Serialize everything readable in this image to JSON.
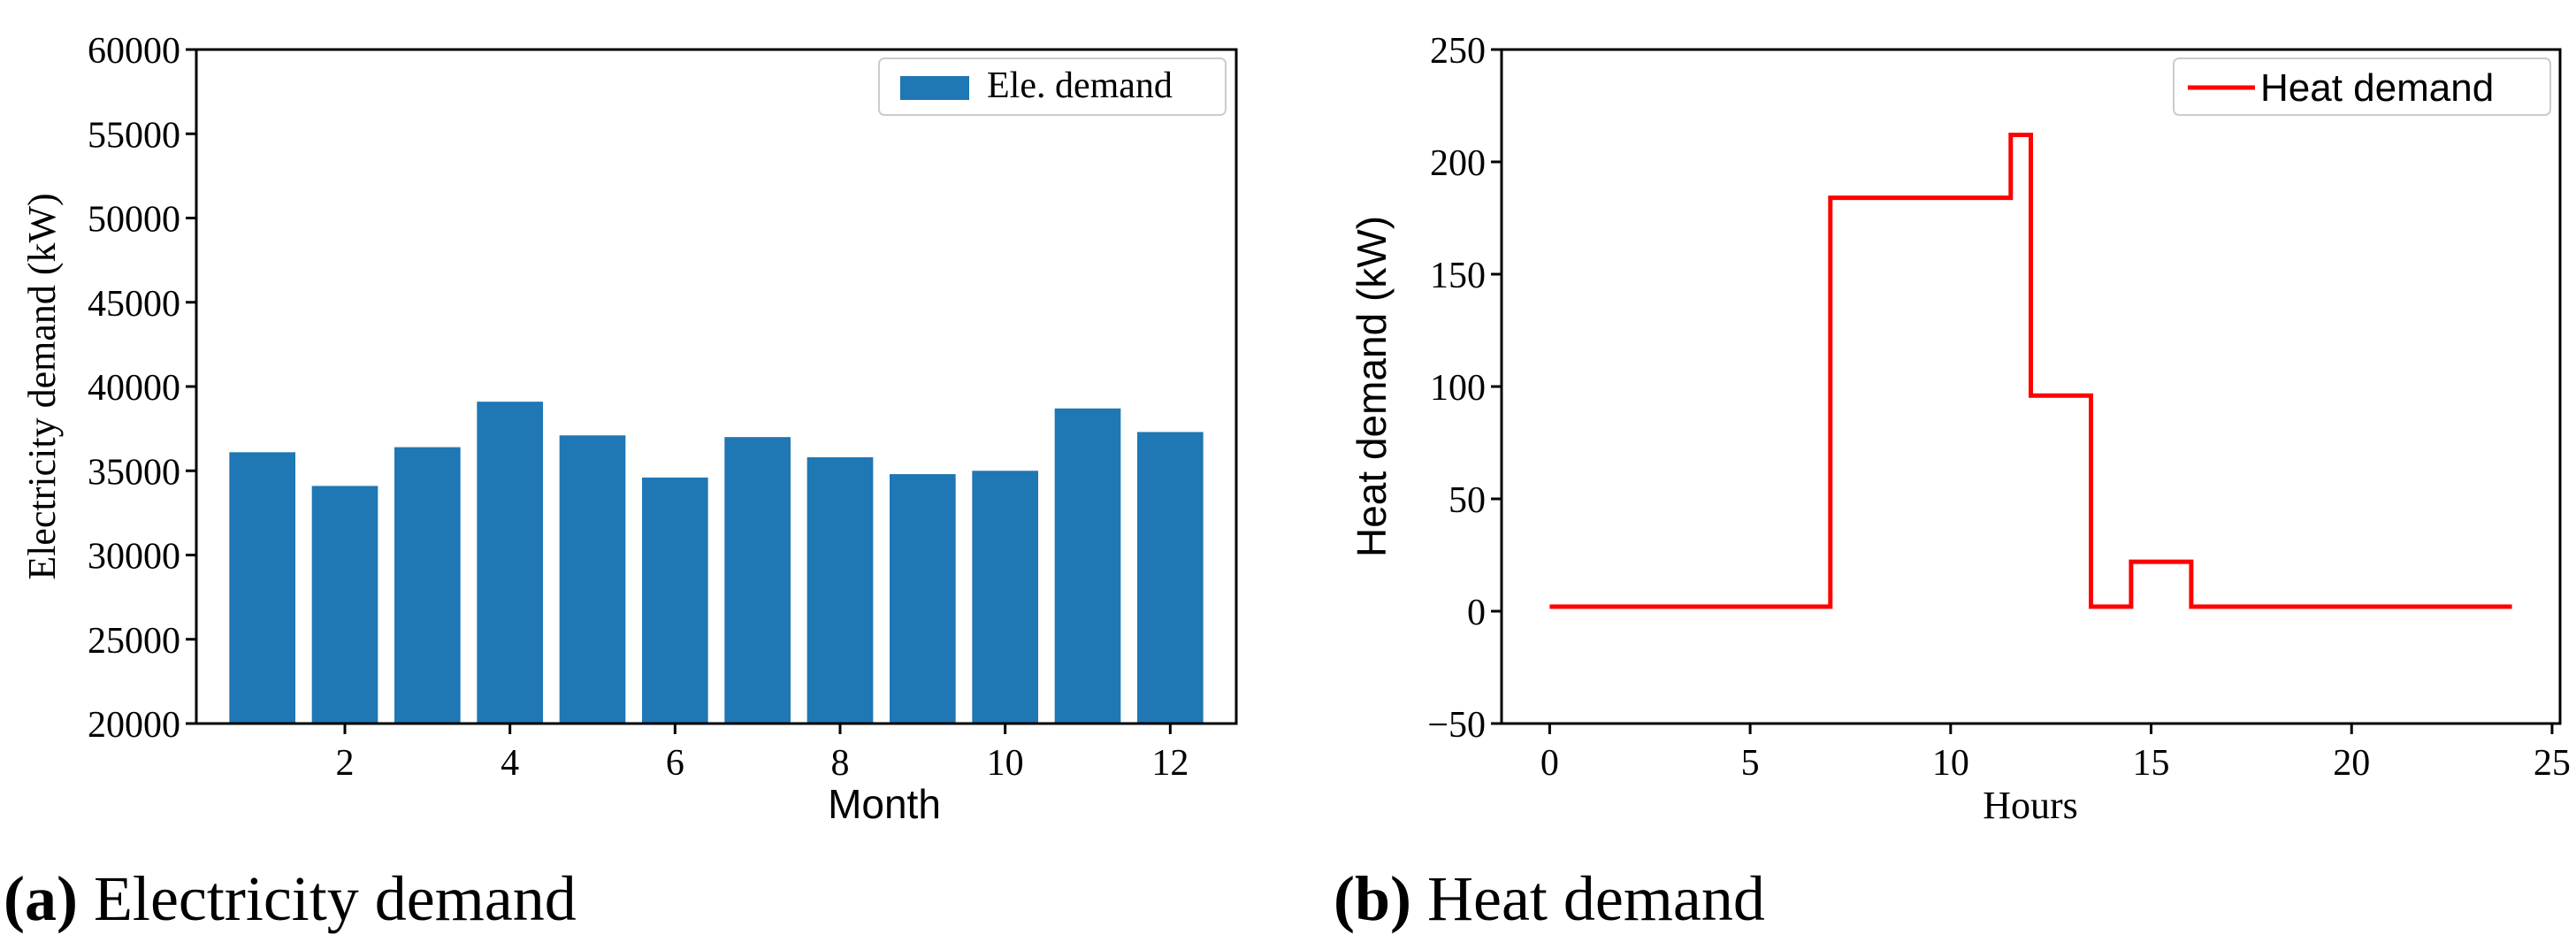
{
  "chart_data": [
    {
      "type": "bar",
      "title": "",
      "xlabel": "Month",
      "ylabel": "Electricity demand (kW)",
      "categories": [
        1,
        2,
        3,
        4,
        5,
        6,
        7,
        8,
        9,
        10,
        11,
        12
      ],
      "series": [
        {
          "name": "Ele. demand",
          "color": "#1f77b4",
          "values": [
            36100,
            34100,
            36400,
            39100,
            37100,
            34600,
            37000,
            35800,
            34800,
            35000,
            38700,
            37300
          ]
        }
      ],
      "xlim": [
        0.2,
        12.8
      ],
      "ylim": [
        20000,
        60000
      ],
      "xticks": [
        2,
        4,
        6,
        8,
        10,
        12
      ],
      "yticks": [
        20000,
        25000,
        30000,
        35000,
        40000,
        45000,
        50000,
        55000,
        60000
      ],
      "legend": "top-right",
      "grid": false
    },
    {
      "type": "line",
      "title": "",
      "xlabel": "Hours",
      "ylabel": "Heat demand (kW)",
      "series": [
        {
          "name": "Heat demand",
          "color": "#ff0000",
          "step": true,
          "x": [
            0,
            7,
            7,
            11.5,
            11.5,
            12,
            12,
            13.5,
            13.5,
            14.5,
            14.5,
            16,
            16,
            24
          ],
          "y": [
            2,
            2,
            184,
            184,
            212,
            212,
            96,
            96,
            2,
            2,
            22,
            22,
            2,
            2
          ]
        }
      ],
      "xlim": [
        -1.2,
        25.2
      ],
      "ylim": [
        -50,
        250
      ],
      "xticks": [
        0,
        5,
        10,
        15,
        20,
        25
      ],
      "yticks": [
        -50,
        0,
        50,
        100,
        150,
        200,
        250
      ],
      "legend": "top-right",
      "grid": false
    }
  ],
  "captions": [
    {
      "label": "(a)",
      "text": "Electricity demand"
    },
    {
      "label": "(b)",
      "text": "Heat demand"
    }
  ]
}
